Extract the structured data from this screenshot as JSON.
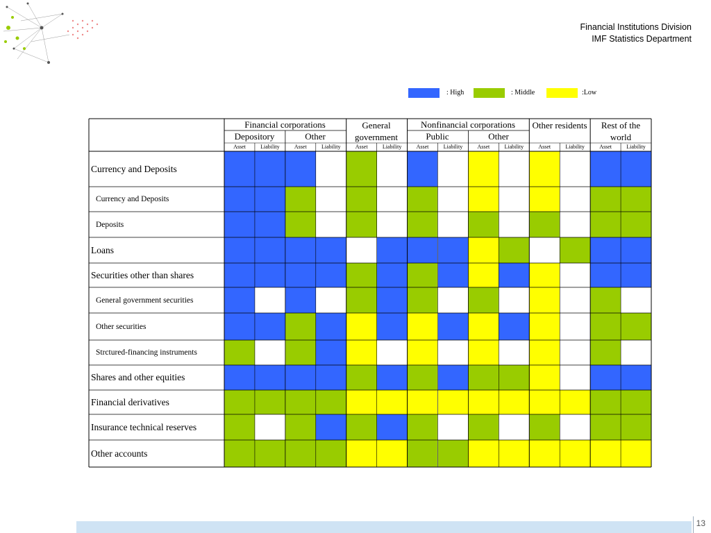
{
  "header": {
    "line1": "Financial Institutions Division",
    "line2": "IMF Statistics Department"
  },
  "legend": [
    {
      "label": ": High",
      "color": "#3366ff"
    },
    {
      "label": ": Middle",
      "color": "#99cc00"
    },
    {
      "label": ":Low",
      "color": "#ffff00"
    }
  ],
  "table": {
    "top_headers": [
      {
        "label": "Financial corporations"
      },
      {
        "label": "General government"
      },
      {
        "label": "Nonfinancial corporations"
      },
      {
        "label": "Other residents"
      },
      {
        "label": "Rest of the world"
      }
    ],
    "mid_headers": [
      {
        "label": "Depository"
      },
      {
        "label": "Other"
      },
      {
        "label": "Public"
      },
      {
        "label": "Other"
      }
    ],
    "sub_headers": [
      "Asset",
      "Liability",
      "Asset",
      "Liability",
      "Asset",
      "Liability",
      "Asset",
      "Liability",
      "Asset",
      "Liability",
      "Asset",
      "Liability",
      "Asset",
      "Liability"
    ],
    "rows": [
      {
        "label": "Currency and Deposits",
        "cells": [
          "H",
          "H",
          "H",
          "W",
          "M",
          "W",
          "H",
          "W",
          "L",
          "W",
          "L",
          "W",
          "H",
          "H"
        ]
      },
      {
        "label": "Currency and Deposits",
        "cells": [
          "H",
          "H",
          "M",
          "W",
          "M",
          "W",
          "M",
          "W",
          "L",
          "W",
          "L",
          "W",
          "M",
          "M"
        ]
      },
      {
        "label": "Deposits",
        "cells": [
          "H",
          "H",
          "M",
          "W",
          "M",
          "W",
          "M",
          "W",
          "M",
          "W",
          "M",
          "W",
          "M",
          "M"
        ]
      },
      {
        "label": "Loans",
        "cells": [
          "H",
          "H",
          "H",
          "H",
          "W",
          "H",
          "H",
          "H",
          "L",
          "M",
          "W",
          "M",
          "H",
          "H"
        ]
      },
      {
        "label": "Securities other than shares",
        "cells": [
          "H",
          "H",
          "H",
          "H",
          "M",
          "H",
          "M",
          "H",
          "L",
          "H",
          "L",
          "W",
          "H",
          "H"
        ]
      },
      {
        "label": "General government securities",
        "cells": [
          "H",
          "W",
          "H",
          "W",
          "M",
          "H",
          "M",
          "W",
          "M",
          "W",
          "L",
          "W",
          "M",
          "W"
        ]
      },
      {
        "label": "Other securities",
        "cells": [
          "H",
          "H",
          "M",
          "H",
          "L",
          "H",
          "L",
          "H",
          "L",
          "H",
          "L",
          "W",
          "M",
          "M"
        ]
      },
      {
        "label": "Strctured-financing instruments",
        "cells": [
          "M",
          "W",
          "M",
          "H",
          "L",
          "W",
          "L",
          "W",
          "L",
          "W",
          "L",
          "W",
          "M",
          "W"
        ]
      },
      {
        "label": "Shares and other equities",
        "cells": [
          "H",
          "H",
          "H",
          "H",
          "M",
          "H",
          "M",
          "H",
          "M",
          "M",
          "L",
          "W",
          "H",
          "H"
        ]
      },
      {
        "label": "Financial derivatives",
        "cells": [
          "M",
          "M",
          "M",
          "M",
          "L",
          "L",
          "L",
          "L",
          "L",
          "L",
          "L",
          "L",
          "M",
          "M"
        ]
      },
      {
        "label": "Insurance technical reserves",
        "cells": [
          "M",
          "W",
          "M",
          "H",
          "M",
          "H",
          "M",
          "W",
          "M",
          "W",
          "M",
          "W",
          "M",
          "M"
        ]
      },
      {
        "label": "Other accounts",
        "cells": [
          "M",
          "M",
          "M",
          "M",
          "L",
          "L",
          "M",
          "M",
          "L",
          "L",
          "L",
          "L",
          "L",
          "L"
        ]
      }
    ]
  },
  "footer": {
    "page_number": "13"
  }
}
